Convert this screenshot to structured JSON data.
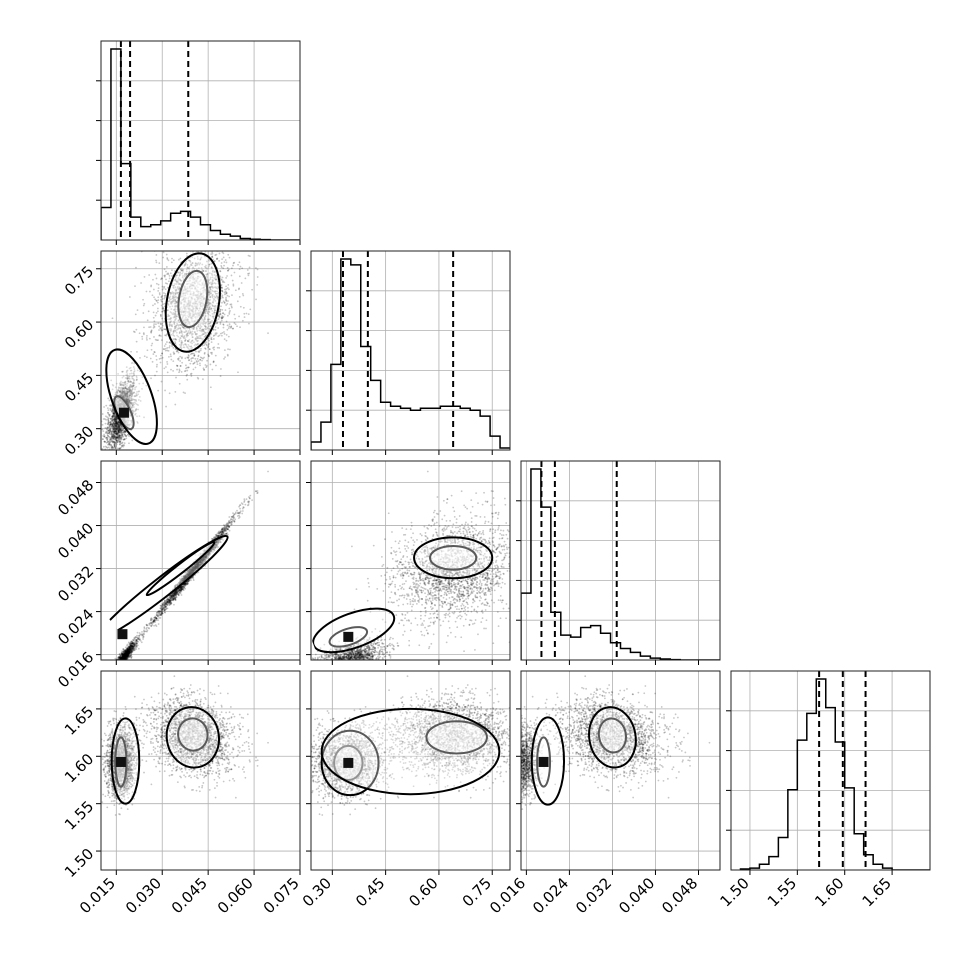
{
  "chart_data": {
    "type": "corner",
    "grid": true,
    "variables": [
      {
        "index": 0,
        "range": [
          0.01,
          0.075
        ],
        "ticks": [
          0.015,
          0.03,
          0.045,
          0.06,
          0.075
        ],
        "tick_labels": [
          "0.015",
          "0.030",
          "0.045",
          "0.060",
          "0.075"
        ],
        "quantiles": [
          0.0165,
          0.0195,
          0.0385
        ],
        "histogram": {
          "edges_start": 0.01,
          "bin_width": 0.00325,
          "counts": [
            0.17,
            1.0,
            0.4,
            0.12,
            0.07,
            0.08,
            0.1,
            0.14,
            0.15,
            0.12,
            0.08,
            0.05,
            0.03,
            0.02,
            0.008,
            0.004,
            0.002,
            0,
            0,
            0
          ]
        }
      },
      {
        "index": 1,
        "range": [
          0.24,
          0.8
        ],
        "ticks": [
          0.3,
          0.45,
          0.6,
          0.75
        ],
        "tick_labels": [
          "0.30",
          "0.45",
          "0.60",
          "0.75"
        ],
        "quantiles": [
          0.33,
          0.4,
          0.64
        ],
        "histogram": {
          "edges_start": 0.24,
          "bin_width": 0.028,
          "counts": [
            0.04,
            0.14,
            0.43,
            0.96,
            0.93,
            0.52,
            0.35,
            0.24,
            0.22,
            0.21,
            0.2,
            0.21,
            0.21,
            0.22,
            0.22,
            0.21,
            0.2,
            0.17,
            0.07,
            0.01
          ]
        }
      },
      {
        "index": 2,
        "range": [
          0.015,
          0.052
        ],
        "ticks": [
          0.016,
          0.024,
          0.032,
          0.04,
          0.048
        ],
        "tick_labels": [
          "0.016",
          "0.024",
          "0.032",
          "0.040",
          "0.048"
        ],
        "quantiles": [
          0.0188,
          0.0213,
          0.0328
        ],
        "histogram": {
          "edges_start": 0.015,
          "bin_width": 0.00185,
          "counts": [
            0.35,
            1.0,
            0.8,
            0.25,
            0.13,
            0.12,
            0.17,
            0.18,
            0.14,
            0.09,
            0.06,
            0.04,
            0.02,
            0.01,
            0.005,
            0.002,
            0,
            0,
            0,
            0
          ]
        }
      },
      {
        "index": 3,
        "range": [
          1.48,
          1.69
        ],
        "ticks": [
          1.5,
          1.55,
          1.6,
          1.65
        ],
        "tick_labels": [
          "1.50",
          "1.55",
          "1.60",
          "1.65"
        ],
        "quantiles": [
          1.573,
          1.598,
          1.622
        ],
        "histogram": {
          "edges_start": 1.49,
          "bin_width": 0.01,
          "counts": [
            0.005,
            0.01,
            0.03,
            0.07,
            0.17,
            0.42,
            0.68,
            0.82,
            1.0,
            0.85,
            0.67,
            0.43,
            0.19,
            0.08,
            0.03,
            0.01,
            0,
            0,
            0,
            0
          ]
        }
      }
    ]
  }
}
